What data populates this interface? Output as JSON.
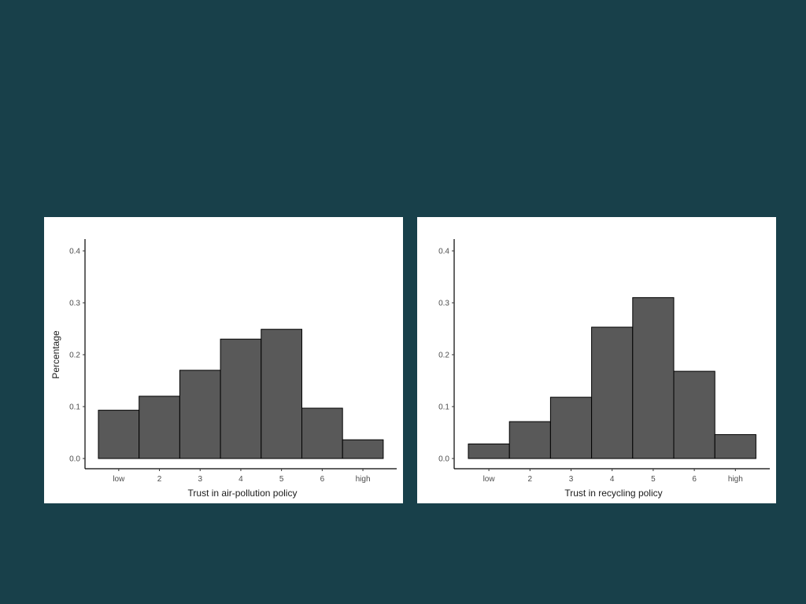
{
  "chart_data": [
    {
      "type": "bar",
      "categories": [
        "low",
        "2",
        "3",
        "4",
        "5",
        "6",
        "high"
      ],
      "values": [
        0.093,
        0.12,
        0.17,
        0.23,
        0.249,
        0.097,
        0.036
      ],
      "xlabel": "Trust in air-pollution policy",
      "ylabel": "Percentage",
      "ylim": [
        0,
        0.4
      ],
      "yticks": [
        "0.0",
        "0.1",
        "0.2",
        "0.3",
        "0.4"
      ],
      "grid": false,
      "bar_color": "#595959",
      "bar_edge_color": "#000000"
    },
    {
      "type": "bar",
      "categories": [
        "low",
        "2",
        "3",
        "4",
        "5",
        "6",
        "high"
      ],
      "values": [
        0.028,
        0.071,
        0.118,
        0.253,
        0.31,
        0.168,
        0.046
      ],
      "xlabel": "Trust in recycling policy",
      "ylabel": "",
      "ylim": [
        0,
        0.4
      ],
      "yticks": [
        "0.0",
        "0.1",
        "0.2",
        "0.3",
        "0.4"
      ],
      "grid": false,
      "bar_color": "#595959",
      "bar_edge_color": "#000000"
    }
  ],
  "colors": {
    "background": "#18404a",
    "panel": "#ffffff"
  }
}
